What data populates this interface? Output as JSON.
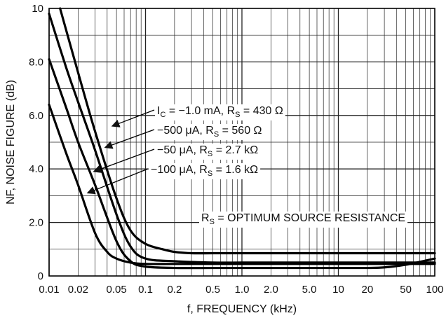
{
  "chart_data": {
    "type": "line",
    "xlabel": "f, FREQUENCY (kHz)",
    "ylabel": "NF, NOISE FIGURE (dB)",
    "xscale": "log",
    "xlim": [
      0.01,
      100
    ],
    "ylim": [
      0,
      10
    ],
    "grid": true,
    "x_ticks": [
      {
        "value": 0.01,
        "label": "0.01"
      },
      {
        "value": 0.02,
        "label": "0.02"
      },
      {
        "value": 0.05,
        "label": "0.05"
      },
      {
        "value": 0.1,
        "label": "0.1"
      },
      {
        "value": 0.2,
        "label": "0.2"
      },
      {
        "value": 0.5,
        "label": "0.5"
      },
      {
        "value": 1,
        "label": "1.0"
      },
      {
        "value": 2,
        "label": "2.0"
      },
      {
        "value": 5,
        "label": "5.0"
      },
      {
        "value": 10,
        "label": "10"
      },
      {
        "value": 20,
        "label": "20"
      },
      {
        "value": 50,
        "label": "50"
      },
      {
        "value": 100,
        "label": "100"
      }
    ],
    "y_ticks": [
      {
        "value": 0,
        "label": "0"
      },
      {
        "value": 2,
        "label": "2.0"
      },
      {
        "value": 4,
        "label": "4.0"
      },
      {
        "value": 6,
        "label": "6.0"
      },
      {
        "value": 8,
        "label": "8.0"
      },
      {
        "value": 10,
        "label": "10"
      }
    ],
    "series": [
      {
        "x": [
          0.013,
          0.02,
          0.03,
          0.05,
          0.07,
          0.1,
          0.15,
          0.2,
          0.3,
          0.5,
          1,
          2,
          5,
          10,
          20,
          50,
          100
        ],
        "y": [
          10.0,
          7.6,
          5.4,
          2.9,
          1.7,
          1.2,
          1.0,
          0.9,
          0.85,
          0.85,
          0.85,
          0.85,
          0.85,
          0.85,
          0.85,
          0.85,
          0.85
        ]
      },
      {
        "x": [
          0.01,
          0.015,
          0.02,
          0.03,
          0.05,
          0.07,
          0.1,
          0.2,
          0.5,
          1,
          2,
          5,
          10,
          20,
          50,
          100
        ],
        "y": [
          9.8,
          7.8,
          6.5,
          4.7,
          2.3,
          1.1,
          0.65,
          0.55,
          0.5,
          0.5,
          0.5,
          0.5,
          0.5,
          0.5,
          0.5,
          0.5
        ]
      },
      {
        "x": [
          0.01,
          0.015,
          0.02,
          0.03,
          0.05,
          0.07,
          0.1,
          0.2,
          0.5,
          1,
          2,
          5,
          10,
          20,
          30,
          50,
          100
        ],
        "y": [
          8.1,
          6.3,
          5.0,
          3.4,
          1.3,
          0.55,
          0.35,
          0.3,
          0.3,
          0.3,
          0.3,
          0.3,
          0.3,
          0.3,
          0.32,
          0.42,
          0.65
        ]
      },
      {
        "x": [
          0.01,
          0.015,
          0.02,
          0.03,
          0.04,
          0.05,
          0.07,
          0.1,
          0.2,
          0.5,
          1,
          2,
          5,
          10,
          20,
          50,
          100
        ],
        "y": [
          6.4,
          4.6,
          3.4,
          1.6,
          0.9,
          0.65,
          0.5,
          0.45,
          0.45,
          0.45,
          0.45,
          0.45,
          0.45,
          0.45,
          0.45,
          0.45,
          0.45
        ]
      }
    ],
    "annotations": [
      {
        "text": "I_C = -1.0 mA, R_S = 430 Ω",
        "parts": [
          [
            "I",
            false
          ],
          [
            "C",
            true
          ],
          [
            " = −1.0 mA, R",
            false
          ],
          [
            "S",
            true
          ],
          [
            " = 430 Ω",
            false
          ]
        ],
        "arrow_to": [
          0.045,
          5.6
        ]
      },
      {
        "text": "-500 μA, R_S = 560 Ω",
        "parts": [
          [
            "−500 μA, R",
            false
          ],
          [
            "S",
            true
          ],
          [
            " = 560 Ω",
            false
          ]
        ],
        "arrow_to": [
          0.038,
          4.8
        ]
      },
      {
        "text": "-50 μA, R_S = 2.7 kΩ",
        "parts": [
          [
            "−50 μA, R",
            false
          ],
          [
            "S",
            true
          ],
          [
            " = 2.7 kΩ",
            false
          ]
        ],
        "arrow_to": [
          0.029,
          3.9
        ]
      },
      {
        "text": "-100 μA, R_S = 1.6 kΩ",
        "parts": [
          [
            "−100 μA, R",
            false
          ],
          [
            "S",
            true
          ],
          [
            " = 1.6 kΩ",
            false
          ]
        ],
        "arrow_to": [
          0.025,
          3.1
        ]
      },
      {
        "text": "R_S = OPTIMUM SOURCE RESISTANCE",
        "parts": [
          [
            "R",
            false
          ],
          [
            "S",
            true
          ],
          [
            " = OPTIMUM SOURCE RESISTANCE",
            false
          ]
        ]
      }
    ]
  }
}
